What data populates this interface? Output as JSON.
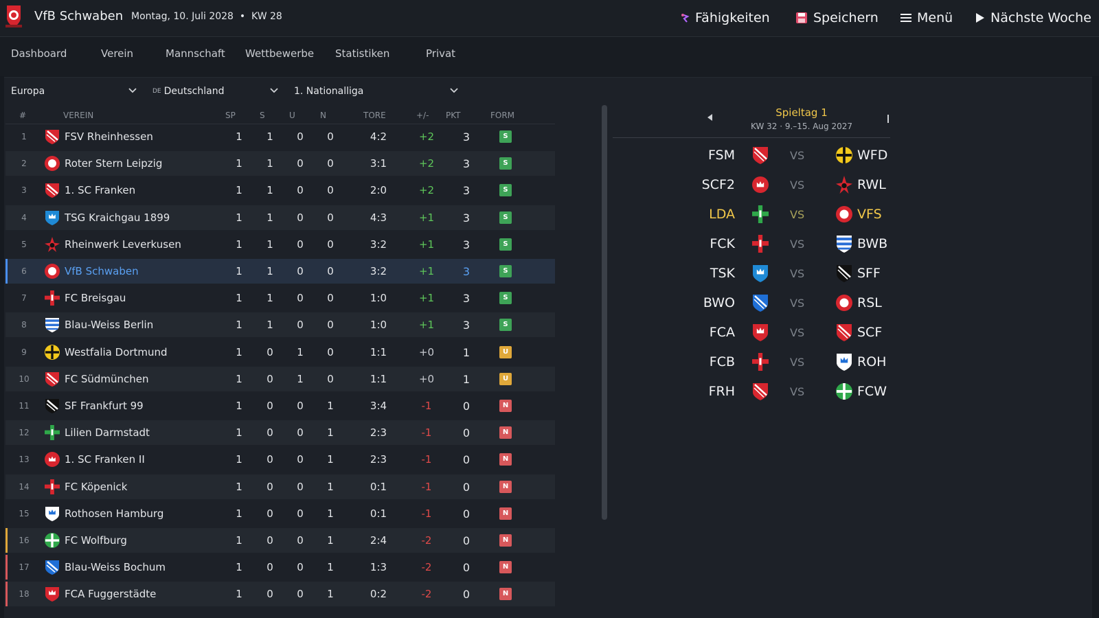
{
  "header": {
    "club_name": "VfB Schwaben",
    "date": "Montag, 10. Juli 2028",
    "week": "KW 28",
    "actions": [
      {
        "label": "Fähigkeiten",
        "icon": "skills-icon"
      },
      {
        "label": "Speichern",
        "icon": "save-icon"
      },
      {
        "label": "Menü",
        "icon": "hamburger-icon"
      },
      {
        "label": "Nächste Woche",
        "icon": "play-icon"
      }
    ]
  },
  "nav": {
    "tabs": [
      "Dashboard",
      "Verein",
      "Mannschaft",
      "Wettbewerbe",
      "Statistiken",
      "Privat"
    ]
  },
  "filters": {
    "region": "Europa",
    "country_code": "DE",
    "country": "Deutschland",
    "league": "1. Nationalliga"
  },
  "table": {
    "columns": {
      "rank": "#",
      "club": "VEREIN",
      "played": "SP",
      "won": "S",
      "draw": "U",
      "lost": "N",
      "goals": "TORE",
      "diff": "+/-",
      "points": "PKT",
      "form": "FORM"
    },
    "rows": [
      {
        "rank": "1",
        "name": "FSV Rheinhessen",
        "sp": "1",
        "s": "1",
        "u": "0",
        "n": "0",
        "goals": "4:2",
        "diff": "+2",
        "pts": "3",
        "form": "S",
        "crest": "slash-shield",
        "c1": "#d8262f",
        "c2": "#ffffff"
      },
      {
        "rank": "2",
        "name": "Roter Stern Leipzig",
        "sp": "1",
        "s": "1",
        "u": "0",
        "n": "0",
        "goals": "3:1",
        "diff": "+2",
        "pts": "3",
        "form": "S",
        "crest": "circle",
        "c1": "#d8262f",
        "c2": "#ffffff"
      },
      {
        "rank": "3",
        "name": "1. SC Franken",
        "sp": "1",
        "s": "1",
        "u": "0",
        "n": "0",
        "goals": "2:0",
        "diff": "+2",
        "pts": "3",
        "form": "S",
        "crest": "slash-shield",
        "c1": "#d8262f",
        "c2": "#ffffff"
      },
      {
        "rank": "4",
        "name": "TSG Kraichgau 1899",
        "sp": "1",
        "s": "1",
        "u": "0",
        "n": "0",
        "goals": "4:3",
        "diff": "+1",
        "pts": "3",
        "form": "S",
        "crest": "crown-shield",
        "c1": "#1f8ad6",
        "c2": "#ffffff"
      },
      {
        "rank": "5",
        "name": "Rheinwerk Leverkusen",
        "sp": "1",
        "s": "1",
        "u": "0",
        "n": "0",
        "goals": "3:2",
        "diff": "+1",
        "pts": "3",
        "form": "S",
        "crest": "star",
        "c1": "#d8262f",
        "c2": "#111111"
      },
      {
        "rank": "6",
        "name": "VfB Schwaben",
        "sp": "1",
        "s": "1",
        "u": "0",
        "n": "0",
        "goals": "3:2",
        "diff": "+1",
        "pts": "3",
        "form": "S",
        "crest": "circle",
        "c1": "#d8262f",
        "c2": "#ffffff",
        "own": true
      },
      {
        "rank": "7",
        "name": "FC Breisgau",
        "sp": "1",
        "s": "1",
        "u": "0",
        "n": "0",
        "goals": "1:0",
        "diff": "+1",
        "pts": "3",
        "form": "S",
        "crest": "cross",
        "c1": "#d8262f",
        "c2": "#ffffff"
      },
      {
        "rank": "8",
        "name": "Blau-Weiss Berlin",
        "sp": "1",
        "s": "1",
        "u": "0",
        "n": "0",
        "goals": "1:0",
        "diff": "+1",
        "pts": "3",
        "form": "S",
        "crest": "stripes",
        "c1": "#2a6fd6",
        "c2": "#ffffff"
      },
      {
        "rank": "9",
        "name": "Westfalia Dortmund",
        "sp": "1",
        "s": "0",
        "u": "1",
        "n": "0",
        "goals": "1:1",
        "diff": "+0",
        "pts": "1",
        "form": "U",
        "crest": "cross-circle",
        "c1": "#f2c81c",
        "c2": "#111111"
      },
      {
        "rank": "10",
        "name": "FC Südmünchen",
        "sp": "1",
        "s": "0",
        "u": "1",
        "n": "0",
        "goals": "1:1",
        "diff": "+0",
        "pts": "1",
        "form": "U",
        "crest": "slash-shield",
        "c1": "#d8262f",
        "c2": "#ffffff"
      },
      {
        "rank": "11",
        "name": "SF Frankfurt 99",
        "sp": "1",
        "s": "0",
        "u": "0",
        "n": "1",
        "goals": "3:4",
        "diff": "-1",
        "pts": "0",
        "form": "N",
        "crest": "slash-shield",
        "c1": "#111111",
        "c2": "#ffffff"
      },
      {
        "rank": "12",
        "name": "Lilien Darmstadt",
        "sp": "1",
        "s": "0",
        "u": "0",
        "n": "1",
        "goals": "2:3",
        "diff": "-1",
        "pts": "0",
        "form": "N",
        "crest": "cross",
        "c1": "#2fa84a",
        "c2": "#ffffff"
      },
      {
        "rank": "13",
        "name": "1. SC Franken II",
        "sp": "1",
        "s": "0",
        "u": "0",
        "n": "1",
        "goals": "2:3",
        "diff": "-1",
        "pts": "0",
        "form": "N",
        "crest": "crown-circle",
        "c1": "#d8262f",
        "c2": "#ffffff"
      },
      {
        "rank": "14",
        "name": "FC Köpenick",
        "sp": "1",
        "s": "0",
        "u": "0",
        "n": "1",
        "goals": "0:1",
        "diff": "-1",
        "pts": "0",
        "form": "N",
        "crest": "cross",
        "c1": "#d8262f",
        "c2": "#ffffff"
      },
      {
        "rank": "15",
        "name": "Rothosen Hamburg",
        "sp": "1",
        "s": "0",
        "u": "0",
        "n": "1",
        "goals": "0:1",
        "diff": "-1",
        "pts": "0",
        "form": "N",
        "crest": "crown-shield",
        "c1": "#ffffff",
        "c2": "#1f6fd6"
      },
      {
        "rank": "16",
        "name": "FC Wolfburg",
        "sp": "1",
        "s": "0",
        "u": "0",
        "n": "1",
        "goals": "2:4",
        "diff": "-2",
        "pts": "0",
        "form": "N",
        "crest": "cross-circle",
        "c1": "#2fa84a",
        "c2": "#ffffff",
        "zone": "relegation-playoff"
      },
      {
        "rank": "17",
        "name": "Blau-Weiss Bochum",
        "sp": "1",
        "s": "0",
        "u": "0",
        "n": "1",
        "goals": "1:3",
        "diff": "-2",
        "pts": "0",
        "form": "N",
        "crest": "slash-shield",
        "c1": "#1f6fd6",
        "c2": "#ffffff",
        "zone": "relegation"
      },
      {
        "rank": "18",
        "name": "FCA Fuggerstädte",
        "sp": "1",
        "s": "0",
        "u": "0",
        "n": "1",
        "goals": "0:2",
        "diff": "-2",
        "pts": "0",
        "form": "N",
        "crest": "crown-shield",
        "c1": "#d8262f",
        "c2": "#ffffff",
        "zone": "relegation"
      }
    ]
  },
  "fixtures": {
    "title": "Spieltag 1",
    "subtitle": "KW 32 · 9.–15. Aug 2027",
    "vs_label": "VS",
    "matches": [
      {
        "home": "FSM",
        "home_crest": "slash-shield",
        "hc1": "#d8262f",
        "hc2": "#ffffff",
        "away": "WFD",
        "away_crest": "cross-circle",
        "ac1": "#f2c81c",
        "ac2": "#111111"
      },
      {
        "home": "SCF2",
        "home_crest": "crown-circle",
        "hc1": "#d8262f",
        "hc2": "#ffffff",
        "away": "RWL",
        "away_crest": "star",
        "ac1": "#d8262f",
        "ac2": "#111111"
      },
      {
        "home": "LDA",
        "home_crest": "cross",
        "hc1": "#2fa84a",
        "hc2": "#ffffff",
        "away": "VFS",
        "away_crest": "circle",
        "ac1": "#d8262f",
        "ac2": "#ffffff",
        "highlight": true
      },
      {
        "home": "FCK",
        "home_crest": "cross",
        "hc1": "#d8262f",
        "hc2": "#ffffff",
        "away": "BWB",
        "away_crest": "stripes",
        "ac1": "#2a6fd6",
        "ac2": "#ffffff"
      },
      {
        "home": "TSK",
        "home_crest": "crown-shield",
        "hc1": "#1f8ad6",
        "hc2": "#ffffff",
        "away": "SFF",
        "away_crest": "slash-shield",
        "ac1": "#111111",
        "ac2": "#ffffff"
      },
      {
        "home": "BWO",
        "home_crest": "slash-shield",
        "hc1": "#1f6fd6",
        "hc2": "#ffffff",
        "away": "RSL",
        "away_crest": "circle",
        "ac1": "#d8262f",
        "ac2": "#ffffff"
      },
      {
        "home": "FCA",
        "home_crest": "crown-shield",
        "hc1": "#d8262f",
        "hc2": "#ffffff",
        "away": "SCF",
        "away_crest": "slash-shield",
        "ac1": "#d8262f",
        "ac2": "#ffffff"
      },
      {
        "home": "FCB",
        "home_crest": "cross",
        "hc1": "#d8262f",
        "hc2": "#ffffff",
        "away": "ROH",
        "away_crest": "crown-shield",
        "ac1": "#ffffff",
        "ac2": "#1f6fd6"
      },
      {
        "home": "FRH",
        "home_crest": "slash-shield",
        "hc1": "#d8262f",
        "hc2": "#ffffff",
        "away": "FCW",
        "away_crest": "cross-circle",
        "ac1": "#2fa84a",
        "ac2": "#ffffff"
      }
    ]
  },
  "colors": {
    "accent_own": "#5aa0f2",
    "win": "#3ea357",
    "draw": "#e0a83a",
    "loss": "#d7585b",
    "matchday_title": "#f2c84a"
  }
}
